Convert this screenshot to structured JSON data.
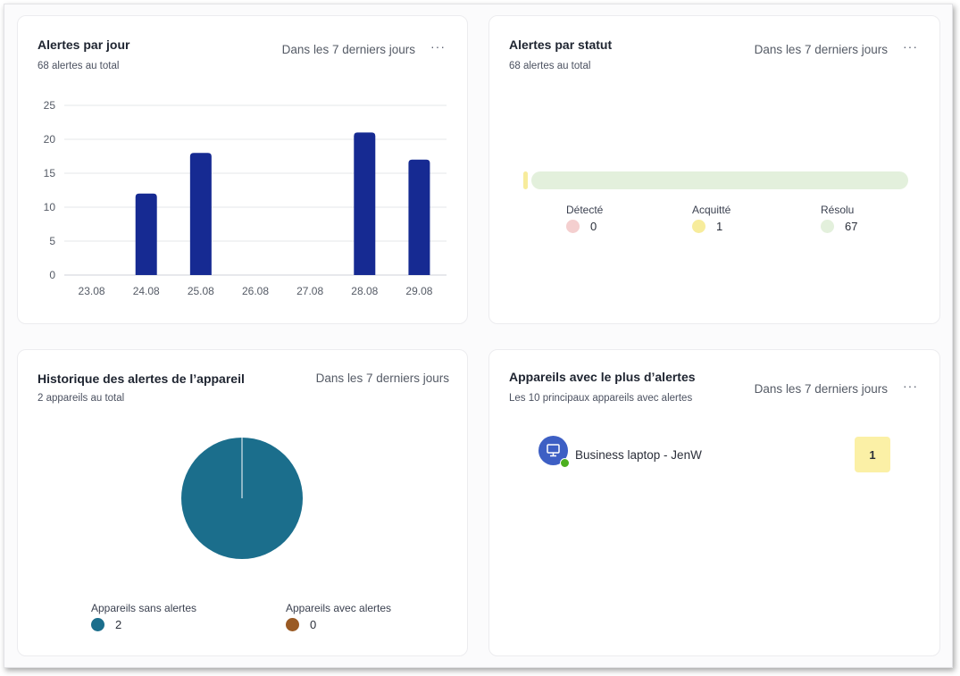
{
  "colors": {
    "bar": "#162a92",
    "pie_main": "#1b6e8c",
    "pie_other": "#9a5a24",
    "detected": "#f4cfcf",
    "acknowledged": "#f7ec9c",
    "resolved": "#e3f0dc"
  },
  "card_day": {
    "title": "Alertes par jour",
    "subtitle": "68 alertes au total",
    "period": "Dans les 7 derniers jours",
    "menu_icon": "more-horizontal-icon"
  },
  "card_status": {
    "title": "Alertes par statut",
    "subtitle": "68 alertes au total",
    "period": "Dans les 7 derniers jours",
    "items": [
      {
        "label": "Détecté",
        "value": "0",
        "color": "#f4cfcf"
      },
      {
        "label": "Acquitté",
        "value": "1",
        "color": "#f7ec9c"
      },
      {
        "label": "Résolu",
        "value": "67",
        "color": "#e3f0dc"
      }
    ]
  },
  "card_history": {
    "title": "Historique des alertes de l’appareil",
    "subtitle": "2 appareils au total",
    "period": "Dans les 7 derniers jours",
    "legend": [
      {
        "label": "Appareils sans alertes",
        "value": "2",
        "color": "#1b6e8c"
      },
      {
        "label": "Appareils avec alertes",
        "value": "0",
        "color": "#9a5a24"
      }
    ]
  },
  "card_devices": {
    "title": "Appareils avec le plus d’alertes",
    "subtitle": "Les 10 principaux appareils avec alertes",
    "period": "Dans les 7 derniers jours",
    "devices": [
      {
        "name": "Business laptop - JenW",
        "count": "1",
        "icon": "monitor-icon",
        "status_color": "#4caf1f"
      }
    ]
  },
  "chart_data": [
    {
      "type": "bar",
      "title": "Alertes par jour",
      "categories": [
        "23.08",
        "24.08",
        "25.08",
        "26.08",
        "27.08",
        "28.08",
        "29.08"
      ],
      "values": [
        0,
        12,
        18,
        0,
        0,
        21,
        17
      ],
      "ylim": [
        0,
        25
      ],
      "yticks": [
        0,
        5,
        10,
        15,
        20,
        25
      ],
      "grid": true
    },
    {
      "type": "pie",
      "title": "Historique des alertes de l’appareil",
      "labels": [
        "Appareils sans alertes",
        "Appareils avec alertes"
      ],
      "values": [
        2,
        0
      ]
    }
  ]
}
